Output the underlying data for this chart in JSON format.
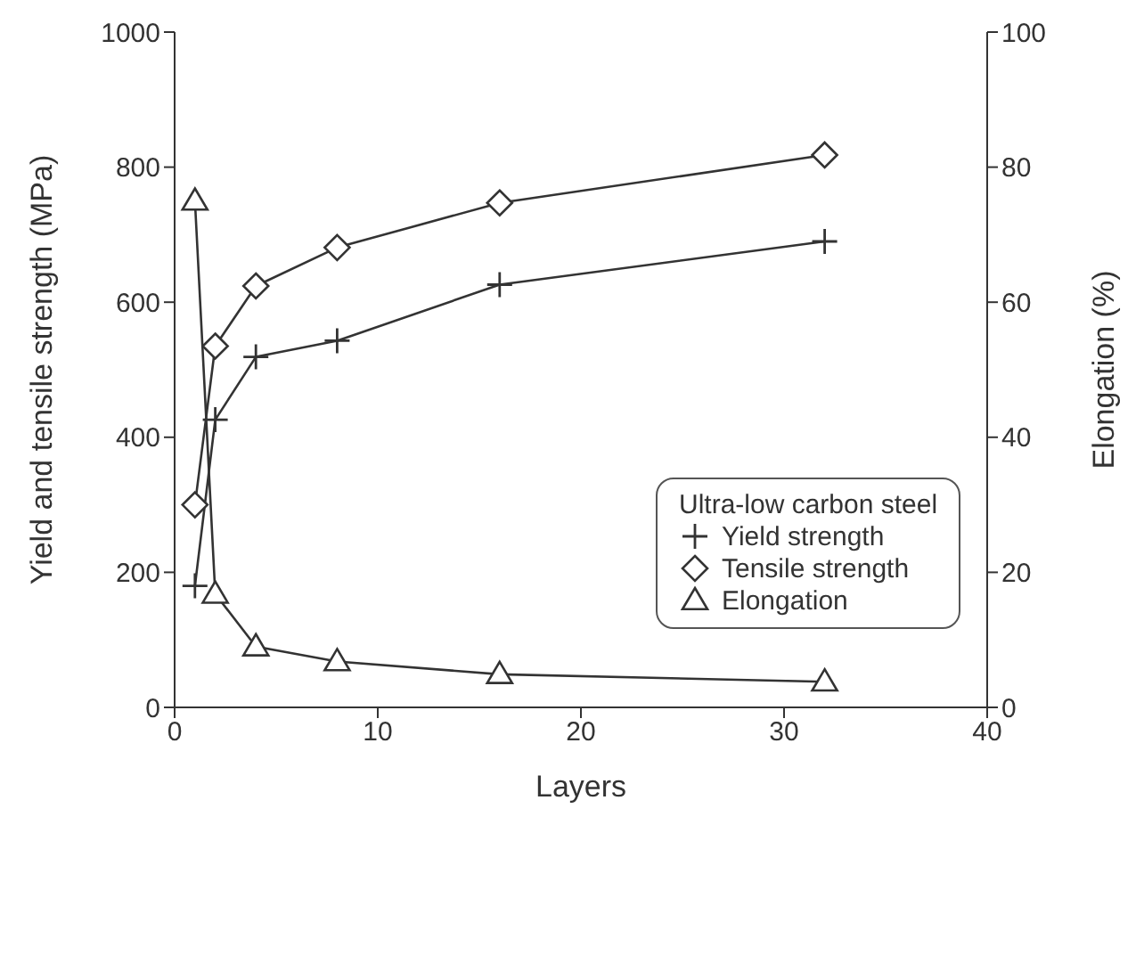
{
  "chart_data": {
    "type": "line",
    "xlabel": "Layers",
    "ylabel": "Yield and tensile strength (MPa)",
    "y2label": "Elongation (%)",
    "legend_title": "Ultra-low carbon steel",
    "x": [
      1,
      2,
      4,
      8,
      16,
      32
    ],
    "series": [
      {
        "name": "Yield strength",
        "color": "#333333",
        "marker": "cross",
        "values": [
          180,
          426,
          519,
          543,
          626,
          690
        ]
      },
      {
        "name": "Tensile strength",
        "color": "#333333",
        "marker": "diamond",
        "values": [
          300,
          535,
          624,
          681,
          747,
          818
        ]
      },
      {
        "name": "Elongation",
        "color": "#333333",
        "marker": "triangle",
        "axis": "y2",
        "values": [
          75,
          16.8,
          9,
          6.8,
          4.9,
          3.8
        ]
      }
    ],
    "xlim": [
      0,
      40
    ],
    "xticks": [
      0,
      10,
      20,
      30,
      40
    ],
    "ylim": [
      0,
      1000
    ],
    "yticks": [
      0,
      200,
      400,
      600,
      800,
      1000
    ],
    "y2lim": [
      0,
      100
    ],
    "y2ticks": [
      0,
      20,
      40,
      60,
      80,
      100
    ],
    "grid": false,
    "legend": "right",
    "line_style": "solid"
  }
}
